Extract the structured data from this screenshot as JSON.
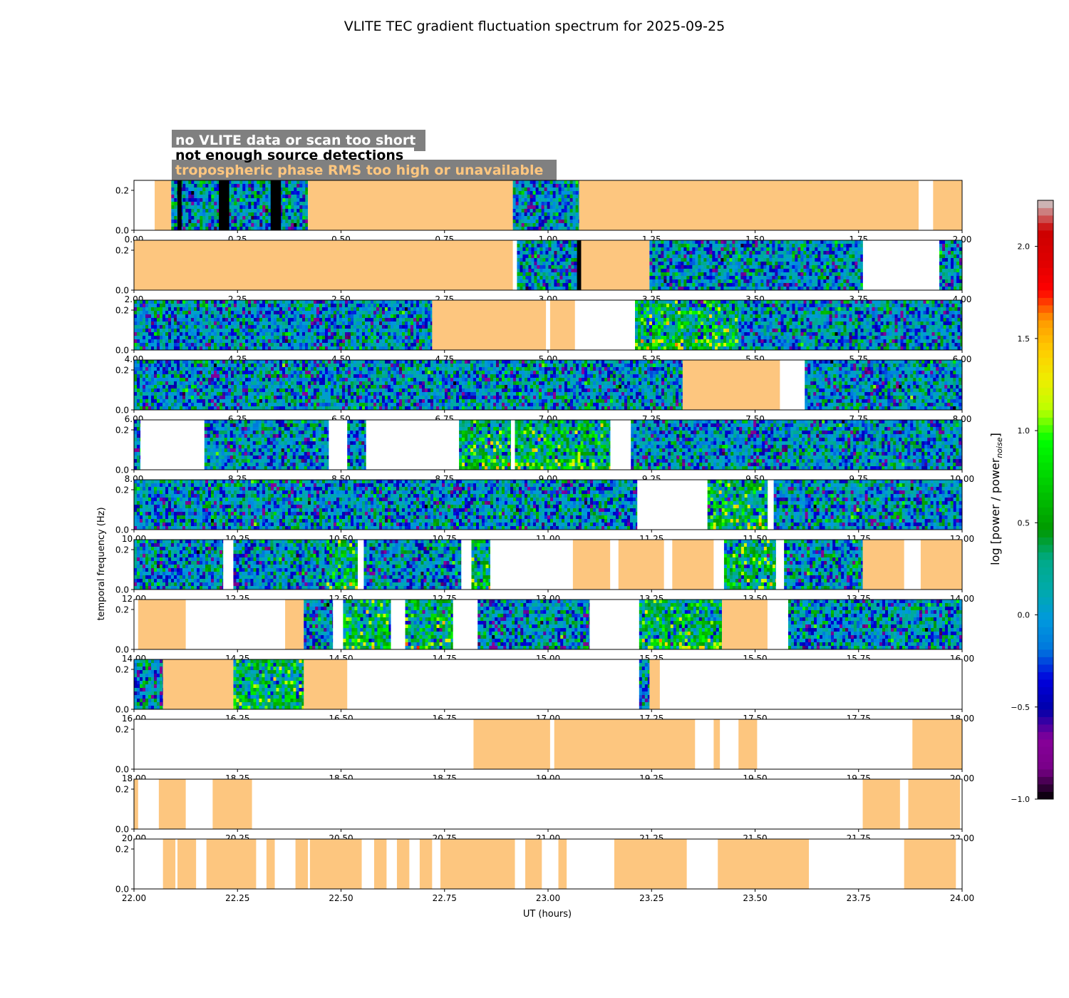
{
  "chart_data": {
    "type": "heatmap",
    "title": "VLITE TEC gradient fluctuation spectrum for 2025-09-25",
    "xlabel": "UT (hours)",
    "ylabel": "temporal frequency (Hz)",
    "colorbar_label_main": "log [power / power",
    "colorbar_label_sub": "noise",
    "colorbar_label_end": "]",
    "colorbar_ticks": [
      "−1.0",
      "−0.5",
      "0.0",
      "0.5",
      "1.0",
      "1.5",
      "2.0"
    ],
    "colorbar_range": [
      -1.0,
      2.25
    ],
    "colorbar_scheme": "nipy_spectral",
    "y_range": [
      0.0,
      0.25
    ],
    "y_ticks": [
      "0.0",
      "0.2"
    ],
    "legend": [
      {
        "label": "no VLITE data or scan too short",
        "text_color": "#ffffff",
        "box_color": "#808080"
      },
      {
        "label": "not enough source detections",
        "text_color": "#000000",
        "box_color": "#ffffff"
      },
      {
        "label": "tropospheric phase RMS too high or unavailable",
        "text_color": "#fdc67f",
        "box_color": "#808080"
      }
    ],
    "segment_colors": {
      "tropo": "#fdc67f",
      "nodet": "#000000"
    },
    "panels": [
      {
        "x_range": [
          0,
          2
        ],
        "x_ticks": [
          "0.00",
          "0.25",
          "0.50",
          "0.75",
          "1.00",
          "1.25",
          "1.50",
          "1.75",
          "2.00"
        ],
        "segments": [
          {
            "start": 0.05,
            "end": 0.09,
            "kind": "tropo"
          },
          {
            "start": 0.09,
            "end": 0.42,
            "kind": "data"
          },
          {
            "start": 0.105,
            "end": 0.115,
            "kind": "nodet"
          },
          {
            "start": 0.205,
            "end": 0.23,
            "kind": "nodet"
          },
          {
            "start": 0.33,
            "end": 0.355,
            "kind": "nodet"
          },
          {
            "start": 0.42,
            "end": 0.915,
            "kind": "tropo"
          },
          {
            "start": 0.915,
            "end": 1.075,
            "kind": "data"
          },
          {
            "start": 1.075,
            "end": 1.895,
            "kind": "tropo"
          },
          {
            "start": 1.93,
            "end": 2.0,
            "kind": "tropo"
          }
        ]
      },
      {
        "x_range": [
          2,
          4
        ],
        "x_ticks": [
          "2.00",
          "2.25",
          "2.50",
          "2.75",
          "3.00",
          "3.25",
          "3.50",
          "3.75",
          "4.00"
        ],
        "segments": [
          {
            "start": 2.0,
            "end": 2.915,
            "kind": "tropo"
          },
          {
            "start": 2.925,
            "end": 3.07,
            "kind": "data"
          },
          {
            "start": 3.07,
            "end": 3.08,
            "kind": "nodet"
          },
          {
            "start": 3.08,
            "end": 3.245,
            "kind": "tropo"
          },
          {
            "start": 3.245,
            "end": 3.76,
            "kind": "data"
          },
          {
            "start": 3.945,
            "end": 4.0,
            "kind": "data"
          }
        ]
      },
      {
        "x_range": [
          4,
          6
        ],
        "x_ticks": [
          "4.00",
          "4.25",
          "4.50",
          "4.75",
          "5.00",
          "5.25",
          "5.50",
          "5.75",
          "6.00"
        ],
        "segments": [
          {
            "start": 4.0,
            "end": 4.72,
            "kind": "data"
          },
          {
            "start": 4.72,
            "end": 4.995,
            "kind": "tropo"
          },
          {
            "start": 5.005,
            "end": 5.065,
            "kind": "tropo"
          },
          {
            "start": 5.21,
            "end": 5.46,
            "kind": "data",
            "bright": true
          },
          {
            "start": 5.46,
            "end": 5.5,
            "kind": "data"
          },
          {
            "start": 5.5,
            "end": 6.0,
            "kind": "data"
          }
        ]
      },
      {
        "x_range": [
          6,
          8
        ],
        "x_ticks": [
          "6.00",
          "6.25",
          "6.50",
          "6.75",
          "7.00",
          "7.25",
          "7.50",
          "7.75",
          "8.00"
        ],
        "segments": [
          {
            "start": 6.0,
            "end": 7.325,
            "kind": "data"
          },
          {
            "start": 7.325,
            "end": 7.56,
            "kind": "tropo"
          },
          {
            "start": 7.62,
            "end": 8.0,
            "kind": "data"
          }
        ]
      },
      {
        "x_range": [
          8,
          10
        ],
        "x_ticks": [
          "8.00",
          "8.25",
          "8.50",
          "8.75",
          "9.00",
          "9.25",
          "9.50",
          "9.75",
          "10.00"
        ],
        "segments": [
          {
            "start": 8.0,
            "end": 8.015,
            "kind": "data"
          },
          {
            "start": 8.17,
            "end": 8.47,
            "kind": "data"
          },
          {
            "start": 8.515,
            "end": 8.56,
            "kind": "data"
          },
          {
            "start": 8.785,
            "end": 8.91,
            "kind": "data",
            "bright": true
          },
          {
            "start": 8.92,
            "end": 9.15,
            "kind": "data",
            "bright": true
          },
          {
            "start": 9.2,
            "end": 10.0,
            "kind": "data"
          }
        ]
      },
      {
        "x_range": [
          10,
          12
        ],
        "x_ticks": [
          "10.00",
          "10.25",
          "10.50",
          "10.75",
          "11.00",
          "11.25",
          "11.50",
          "11.75",
          "12.00"
        ],
        "segments": [
          {
            "start": 10.0,
            "end": 11.215,
            "kind": "data"
          },
          {
            "start": 11.385,
            "end": 11.53,
            "kind": "data",
            "bright": true
          },
          {
            "start": 11.545,
            "end": 12.0,
            "kind": "data"
          }
        ]
      },
      {
        "x_range": [
          12,
          14
        ],
        "x_ticks": [
          "12.00",
          "12.25",
          "12.50",
          "12.75",
          "13.00",
          "13.25",
          "13.50",
          "13.75",
          "14.00"
        ],
        "segments": [
          {
            "start": 12.0,
            "end": 12.215,
            "kind": "data"
          },
          {
            "start": 12.24,
            "end": 12.465,
            "kind": "data"
          },
          {
            "start": 12.465,
            "end": 12.54,
            "kind": "data",
            "bright": true
          },
          {
            "start": 12.555,
            "end": 12.79,
            "kind": "data"
          },
          {
            "start": 12.815,
            "end": 12.86,
            "kind": "data",
            "bright": true
          },
          {
            "start": 13.06,
            "end": 13.15,
            "kind": "tropo"
          },
          {
            "start": 13.17,
            "end": 13.28,
            "kind": "tropo"
          },
          {
            "start": 13.3,
            "end": 13.4,
            "kind": "tropo"
          },
          {
            "start": 13.425,
            "end": 13.55,
            "kind": "data",
            "bright": true
          },
          {
            "start": 13.57,
            "end": 13.76,
            "kind": "data"
          },
          {
            "start": 13.76,
            "end": 13.86,
            "kind": "tropo"
          },
          {
            "start": 13.9,
            "end": 14.0,
            "kind": "tropo"
          }
        ]
      },
      {
        "x_range": [
          14,
          16
        ],
        "x_ticks": [
          "14.00",
          "14.25",
          "14.50",
          "14.75",
          "15.00",
          "15.25",
          "15.50",
          "15.75",
          "16.00"
        ],
        "segments": [
          {
            "start": 14.01,
            "end": 14.125,
            "kind": "tropo"
          },
          {
            "start": 14.365,
            "end": 14.41,
            "kind": "tropo"
          },
          {
            "start": 14.41,
            "end": 14.48,
            "kind": "data"
          },
          {
            "start": 14.505,
            "end": 14.62,
            "kind": "data",
            "bright": true
          },
          {
            "start": 14.655,
            "end": 14.77,
            "kind": "data",
            "bright": true
          },
          {
            "start": 14.83,
            "end": 15.1,
            "kind": "data"
          },
          {
            "start": 15.22,
            "end": 15.42,
            "kind": "data",
            "bright": true
          },
          {
            "start": 15.42,
            "end": 15.53,
            "kind": "tropo"
          },
          {
            "start": 15.58,
            "end": 16.0,
            "kind": "data"
          }
        ]
      },
      {
        "x_range": [
          16,
          18
        ],
        "x_ticks": [
          "16.00",
          "16.25",
          "16.50",
          "16.75",
          "17.00",
          "17.25",
          "17.50",
          "17.75",
          "18.00"
        ],
        "segments": [
          {
            "start": 16.0,
            "end": 16.07,
            "kind": "data"
          },
          {
            "start": 16.07,
            "end": 16.24,
            "kind": "tropo"
          },
          {
            "start": 16.24,
            "end": 16.41,
            "kind": "data",
            "bright": true
          },
          {
            "start": 16.41,
            "end": 16.515,
            "kind": "tropo"
          },
          {
            "start": 17.22,
            "end": 17.245,
            "kind": "data"
          },
          {
            "start": 17.245,
            "end": 17.27,
            "kind": "tropo"
          }
        ]
      },
      {
        "x_range": [
          18,
          20
        ],
        "x_ticks": [
          "18.00",
          "18.25",
          "18.50",
          "18.75",
          "19.00",
          "19.25",
          "19.50",
          "19.75",
          "20.00"
        ],
        "segments": [
          {
            "start": 18.82,
            "end": 19.005,
            "kind": "tropo"
          },
          {
            "start": 19.015,
            "end": 19.355,
            "kind": "tropo"
          },
          {
            "start": 19.4,
            "end": 19.415,
            "kind": "tropo"
          },
          {
            "start": 19.46,
            "end": 19.505,
            "kind": "tropo"
          },
          {
            "start": 19.88,
            "end": 20.0,
            "kind": "tropo"
          }
        ]
      },
      {
        "x_range": [
          20,
          22
        ],
        "x_ticks": [
          "20.00",
          "20.25",
          "20.50",
          "20.75",
          "21.00",
          "21.25",
          "21.50",
          "21.75",
          "22.00"
        ],
        "segments": [
          {
            "start": 20.0,
            "end": 20.01,
            "kind": "tropo"
          },
          {
            "start": 20.06,
            "end": 20.125,
            "kind": "tropo"
          },
          {
            "start": 20.19,
            "end": 20.285,
            "kind": "tropo"
          },
          {
            "start": 21.76,
            "end": 21.85,
            "kind": "tropo"
          },
          {
            "start": 21.87,
            "end": 21.995,
            "kind": "tropo"
          }
        ]
      },
      {
        "x_range": [
          22,
          24
        ],
        "x_ticks": [
          "22.00",
          "22.25",
          "22.50",
          "22.75",
          "23.00",
          "23.25",
          "23.50",
          "23.75",
          "24.00"
        ],
        "segments": [
          {
            "start": 22.07,
            "end": 22.1,
            "kind": "tropo"
          },
          {
            "start": 22.105,
            "end": 22.15,
            "kind": "tropo"
          },
          {
            "start": 22.175,
            "end": 22.295,
            "kind": "tropo"
          },
          {
            "start": 22.32,
            "end": 22.34,
            "kind": "tropo"
          },
          {
            "start": 22.39,
            "end": 22.42,
            "kind": "tropo"
          },
          {
            "start": 22.425,
            "end": 22.55,
            "kind": "tropo"
          },
          {
            "start": 22.58,
            "end": 22.61,
            "kind": "tropo"
          },
          {
            "start": 22.635,
            "end": 22.665,
            "kind": "tropo"
          },
          {
            "start": 22.69,
            "end": 22.72,
            "kind": "tropo"
          },
          {
            "start": 22.74,
            "end": 22.92,
            "kind": "tropo"
          },
          {
            "start": 22.945,
            "end": 22.985,
            "kind": "tropo"
          },
          {
            "start": 23.025,
            "end": 23.045,
            "kind": "tropo"
          },
          {
            "start": 23.16,
            "end": 23.335,
            "kind": "tropo"
          },
          {
            "start": 23.41,
            "end": 23.63,
            "kind": "tropo"
          },
          {
            "start": 23.86,
            "end": 23.985,
            "kind": "tropo"
          }
        ]
      }
    ]
  }
}
